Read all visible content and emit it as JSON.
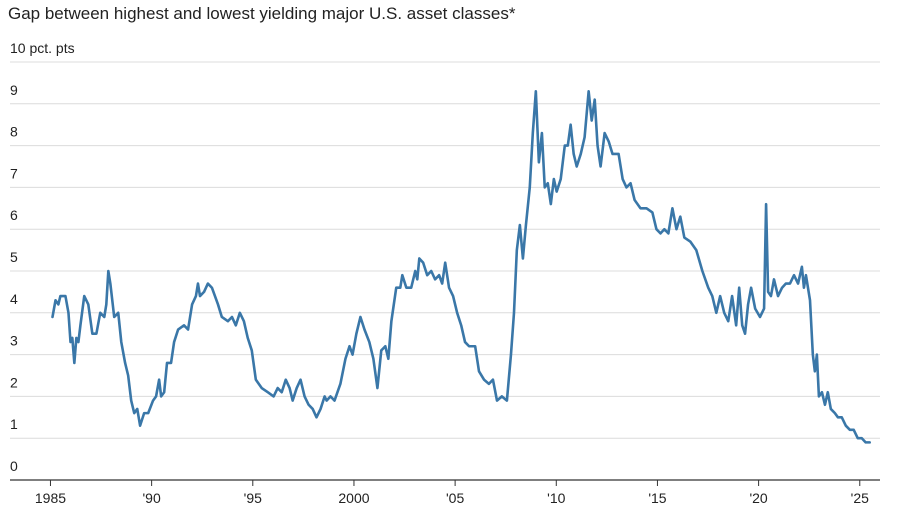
{
  "chart_data": {
    "type": "line",
    "title": "Gap between highest and lowest yielding major U.S. asset classes*",
    "color": "#3a77a8",
    "grid": true,
    "xlim": [
      1983,
      2026
    ],
    "xticks": [
      1985,
      {
        "value": 1990,
        "label": "'90"
      },
      {
        "value": 1995,
        "label": "'95"
      },
      2000,
      {
        "value": 2005,
        "label": "'05"
      },
      {
        "value": 2010,
        "label": "'10"
      },
      {
        "value": 2015,
        "label": "'15"
      },
      {
        "value": 2020,
        "label": "'20"
      },
      {
        "value": 2025,
        "label": "'25"
      }
    ],
    "ylim": [
      0,
      10
    ],
    "yticks": [
      0,
      1,
      2,
      3,
      4,
      5,
      6,
      7,
      8,
      9,
      {
        "value": 10,
        "label": "10 pct. pts"
      }
    ],
    "x": [
      1985.1,
      1985.25,
      1985.39,
      1985.49,
      1985.74,
      1985.89,
      1985.99,
      1986.08,
      1986.18,
      1986.28,
      1986.38,
      1986.48,
      1986.67,
      1986.87,
      1987.07,
      1987.27,
      1987.46,
      1987.66,
      1987.76,
      1987.86,
      1987.96,
      1988.15,
      1988.35,
      1988.5,
      1988.69,
      1988.84,
      1988.99,
      1989.14,
      1989.29,
      1989.43,
      1989.63,
      1989.83,
      1990.07,
      1990.22,
      1990.37,
      1990.47,
      1990.62,
      1990.76,
      1990.96,
      1991.11,
      1991.31,
      1991.6,
      1991.8,
      1992.0,
      1992.19,
      1992.29,
      1992.39,
      1992.59,
      1992.78,
      1992.98,
      1993.28,
      1993.47,
      1993.77,
      1993.97,
      1994.16,
      1994.36,
      1994.56,
      1994.75,
      1994.95,
      1995.15,
      1995.44,
      1995.74,
      1996.03,
      1996.23,
      1996.43,
      1996.63,
      1996.82,
      1996.97,
      1997.17,
      1997.36,
      1997.56,
      1997.76,
      1997.96,
      1998.15,
      1998.35,
      1998.55,
      1998.65,
      1998.84,
      1999.04,
      1999.33,
      1999.58,
      1999.78,
      1999.93,
      2000.12,
      2000.32,
      2000.52,
      2000.76,
      2000.96,
      2001.16,
      2001.35,
      2001.55,
      2001.7,
      2001.85,
      2002.09,
      2002.29,
      2002.39,
      2002.59,
      2002.83,
      2003.03,
      2003.13,
      2003.23,
      2003.42,
      2003.62,
      2003.82,
      2004.01,
      2004.21,
      2004.36,
      2004.51,
      2004.7,
      2004.9,
      2005.1,
      2005.3,
      2005.49,
      2005.69,
      2005.99,
      2006.18,
      2006.43,
      2006.67,
      2006.87,
      2007.07,
      2007.31,
      2007.56,
      2007.76,
      2007.91,
      2008.05,
      2008.2,
      2008.35,
      2008.5,
      2008.69,
      2008.84,
      2008.99,
      2009.14,
      2009.29,
      2009.43,
      2009.58,
      2009.73,
      2009.88,
      2010.02,
      2010.22,
      2010.42,
      2010.57,
      2010.71,
      2010.86,
      2011.01,
      2011.21,
      2011.4,
      2011.6,
      2011.75,
      2011.9,
      2012.04,
      2012.19,
      2012.39,
      2012.59,
      2012.78,
      2013.08,
      2013.28,
      2013.47,
      2013.67,
      2013.87,
      2014.16,
      2014.46,
      2014.75,
      2014.95,
      2015.15,
      2015.34,
      2015.54,
      2015.74,
      2015.94,
      2016.13,
      2016.33,
      2016.63,
      2016.92,
      2017.22,
      2017.51,
      2017.71,
      2017.91,
      2018.1,
      2018.3,
      2018.5,
      2018.69,
      2018.89,
      2019.04,
      2019.19,
      2019.33,
      2019.48,
      2019.63,
      2019.83,
      2020.07,
      2020.27,
      2020.37,
      2020.47,
      2020.61,
      2020.76,
      2020.96,
      2021.16,
      2021.35,
      2021.55,
      2021.75,
      2021.95,
      2022.14,
      2022.24,
      2022.34,
      2022.54,
      2022.68,
      2022.78,
      2022.88,
      2022.98,
      2023.13,
      2023.28,
      2023.42,
      2023.57,
      2023.77,
      2023.92,
      2024.11,
      2024.31,
      2024.51,
      2024.7,
      2024.9,
      2025.1,
      2025.29,
      2025.49
    ],
    "values": [
      3.9,
      4.3,
      4.2,
      4.4,
      4.4,
      4.0,
      3.3,
      3.4,
      2.8,
      3.4,
      3.3,
      3.7,
      4.4,
      4.2,
      3.5,
      3.5,
      4.0,
      3.9,
      4.2,
      5.0,
      4.7,
      3.9,
      4.0,
      3.3,
      2.8,
      2.5,
      1.9,
      1.6,
      1.7,
      1.3,
      1.6,
      1.6,
      1.9,
      2.0,
      2.4,
      2.0,
      2.1,
      2.8,
      2.8,
      3.3,
      3.6,
      3.7,
      3.6,
      4.2,
      4.4,
      4.7,
      4.4,
      4.5,
      4.7,
      4.6,
      4.2,
      3.9,
      3.8,
      3.9,
      3.7,
      4.0,
      3.8,
      3.4,
      3.1,
      2.4,
      2.2,
      2.1,
      2.0,
      2.2,
      2.1,
      2.4,
      2.2,
      1.9,
      2.2,
      2.4,
      2.0,
      1.8,
      1.7,
      1.5,
      1.7,
      2.0,
      1.9,
      2.0,
      1.9,
      2.3,
      2.9,
      3.2,
      3.0,
      3.5,
      3.9,
      3.6,
      3.3,
      2.9,
      2.2,
      3.1,
      3.2,
      2.9,
      3.8,
      4.6,
      4.6,
      4.9,
      4.6,
      4.6,
      5.0,
      4.8,
      5.3,
      5.2,
      4.9,
      5.0,
      4.8,
      4.9,
      4.7,
      5.2,
      4.6,
      4.4,
      4.0,
      3.7,
      3.3,
      3.2,
      3.2,
      2.6,
      2.4,
      2.3,
      2.4,
      1.9,
      2.0,
      1.9,
      3.0,
      4.0,
      5.5,
      6.1,
      5.3,
      6.1,
      7.0,
      8.3,
      9.3,
      7.6,
      8.3,
      7.0,
      7.1,
      6.6,
      7.2,
      6.9,
      7.2,
      8.0,
      8.0,
      8.5,
      7.8,
      7.5,
      7.8,
      8.2,
      9.3,
      8.6,
      9.1,
      8.0,
      7.5,
      8.3,
      8.1,
      7.8,
      7.8,
      7.2,
      7.0,
      7.1,
      6.7,
      6.5,
      6.5,
      6.4,
      6.0,
      5.9,
      6.0,
      5.9,
      6.5,
      6.0,
      6.3,
      5.8,
      5.7,
      5.5,
      5.0,
      4.6,
      4.4,
      4.0,
      4.4,
      4.0,
      3.8,
      4.4,
      3.7,
      4.6,
      3.7,
      3.5,
      4.2,
      4.6,
      4.1,
      3.9,
      4.1,
      6.6,
      4.5,
      4.4,
      4.8,
      4.4,
      4.6,
      4.7,
      4.7,
      4.9,
      4.7,
      5.1,
      4.6,
      4.9,
      4.3,
      3.0,
      2.6,
      3.0,
      2.0,
      2.1,
      1.8,
      2.1,
      1.7,
      1.6,
      1.5,
      1.5,
      1.3,
      1.2,
      1.2,
      1.0,
      1.0,
      0.9,
      0.9
    ]
  }
}
